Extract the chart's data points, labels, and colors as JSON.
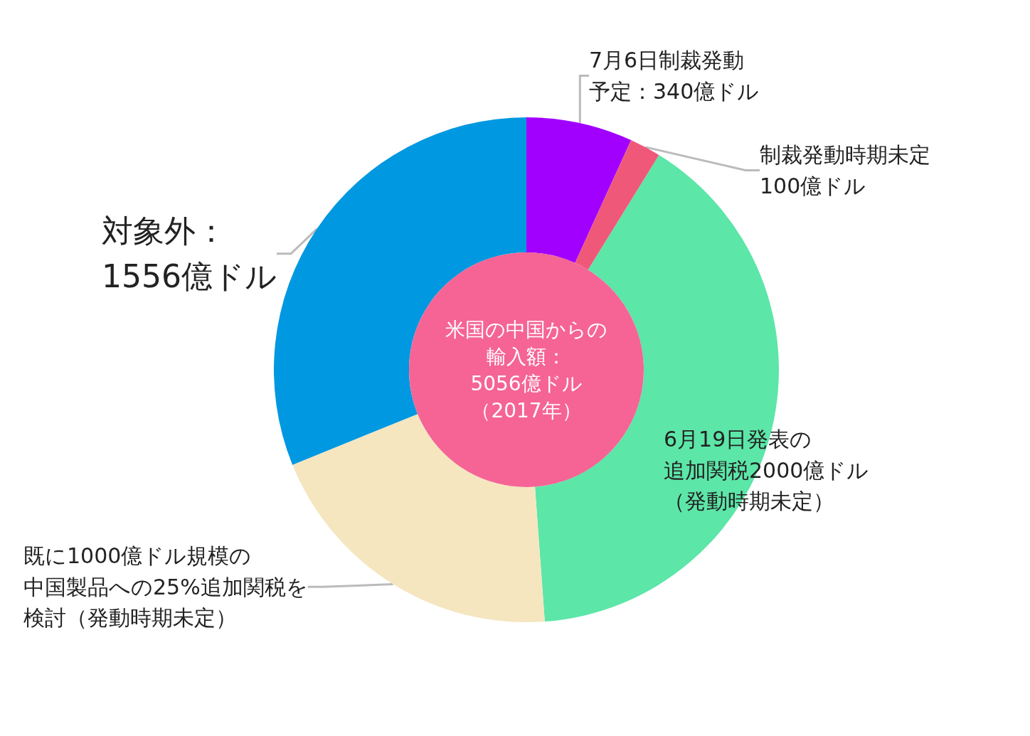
{
  "chart_data": {
    "type": "donut",
    "title": "米国の中国からの輸入額：5056億ドル（2017年）",
    "categories": [
      "7月6日制裁発動予定：340億ドル",
      "制裁発動時期未定100億ドル",
      "6月19日発表の追加関税2000億ドル（発動時期未定）",
      "既に1000億ドル規模の中国製品への25%追加関税を検討（発動時期未定）",
      "対象外：1556億ドル"
    ],
    "values": [
      340,
      100,
      2000,
      1000,
      1556
    ],
    "colors": [
      "#a100ff",
      "#f0587a",
      "#5ce6a8",
      "#f5e6c0",
      "#0098e0"
    ],
    "legend": false
  }
}
